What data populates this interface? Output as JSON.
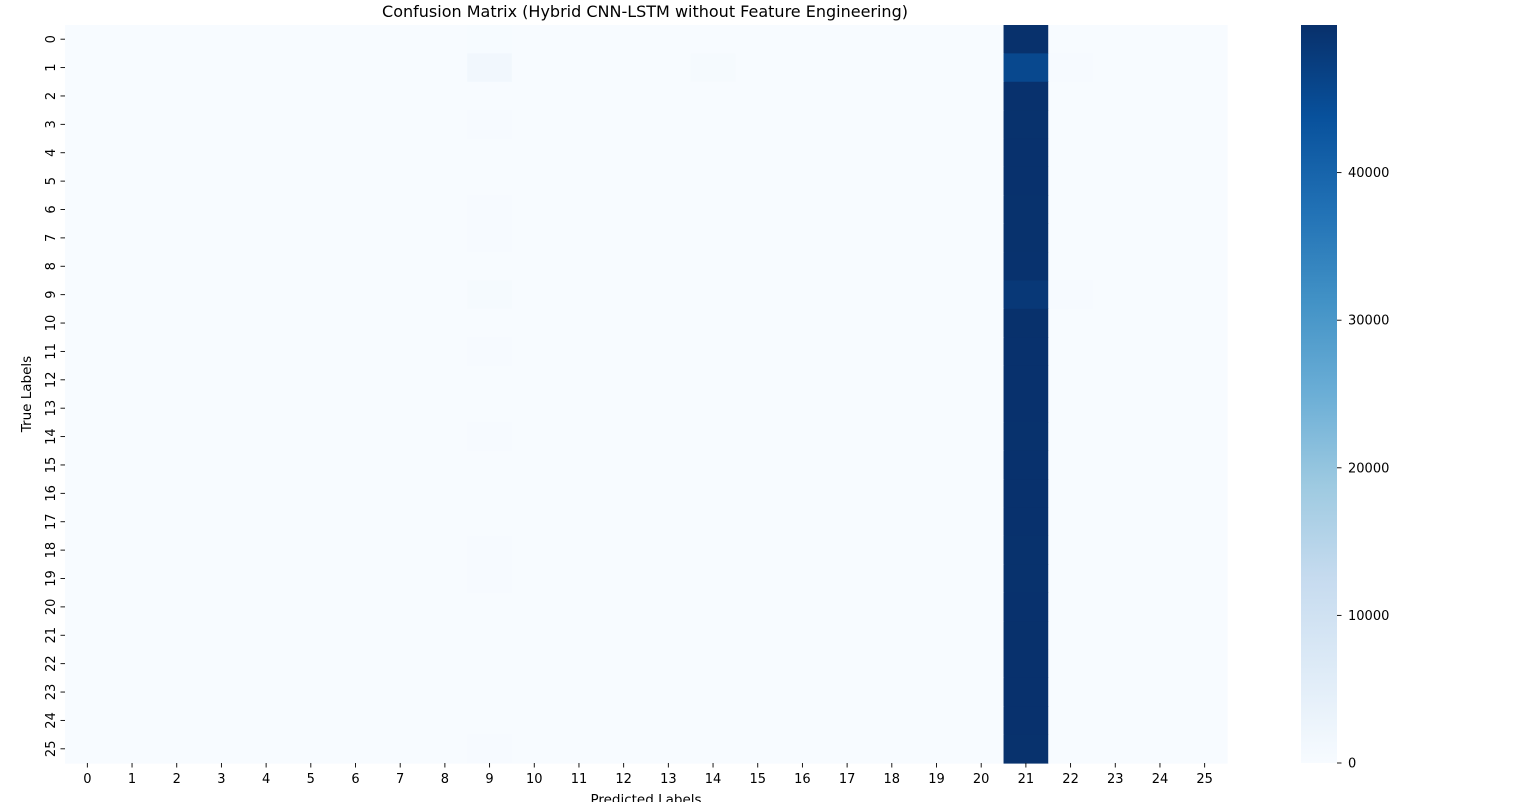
{
  "chart_data": {
    "type": "heatmap",
    "title": "Confusion Matrix (Hybrid CNN-LSTM without Feature Engineering)",
    "xlabel": "Predicted Labels",
    "ylabel": "True Labels",
    "x_categories": [
      "0",
      "1",
      "2",
      "3",
      "4",
      "5",
      "6",
      "7",
      "8",
      "9",
      "10",
      "11",
      "12",
      "13",
      "14",
      "15",
      "16",
      "17",
      "18",
      "19",
      "20",
      "21",
      "22",
      "23",
      "24",
      "25"
    ],
    "y_categories": [
      "0",
      "1",
      "2",
      "3",
      "4",
      "5",
      "6",
      "7",
      "8",
      "9",
      "10",
      "11",
      "12",
      "13",
      "14",
      "15",
      "16",
      "17",
      "18",
      "19",
      "20",
      "21",
      "22",
      "23",
      "24",
      "25"
    ],
    "colormap": "Blues",
    "vmin": 0,
    "vmax": 50000,
    "colorbar_ticks": [
      0,
      10000,
      20000,
      30000,
      40000
    ],
    "colorbar_tick_labels": [
      "0",
      "10000",
      "20000",
      "30000",
      "40000"
    ],
    "grid": false,
    "cells": [
      {
        "row": 0,
        "col": 21,
        "value": 49900
      },
      {
        "row": 0,
        "col": 9,
        "value": 150
      },
      {
        "row": 1,
        "col": 21,
        "value": 45500
      },
      {
        "row": 1,
        "col": 9,
        "value": 1600
      },
      {
        "row": 1,
        "col": 14,
        "value": 500
      },
      {
        "row": 1,
        "col": 22,
        "value": 350
      },
      {
        "row": 2,
        "col": 21,
        "value": 49800
      },
      {
        "row": 3,
        "col": 21,
        "value": 49700
      },
      {
        "row": 3,
        "col": 9,
        "value": 250
      },
      {
        "row": 4,
        "col": 21,
        "value": 49800
      },
      {
        "row": 5,
        "col": 21,
        "value": 49800
      },
      {
        "row": 6,
        "col": 21,
        "value": 49700
      },
      {
        "row": 6,
        "col": 9,
        "value": 250
      },
      {
        "row": 7,
        "col": 21,
        "value": 49700
      },
      {
        "row": 7,
        "col": 9,
        "value": 200
      },
      {
        "row": 8,
        "col": 21,
        "value": 49600
      },
      {
        "row": 9,
        "col": 21,
        "value": 48500
      },
      {
        "row": 9,
        "col": 9,
        "value": 500
      },
      {
        "row": 9,
        "col": 22,
        "value": 250
      },
      {
        "row": 10,
        "col": 21,
        "value": 49900
      },
      {
        "row": 11,
        "col": 21,
        "value": 49800
      },
      {
        "row": 11,
        "col": 9,
        "value": 250
      },
      {
        "row": 12,
        "col": 21,
        "value": 49800
      },
      {
        "row": 13,
        "col": 21,
        "value": 49800
      },
      {
        "row": 14,
        "col": 21,
        "value": 49700
      },
      {
        "row": 14,
        "col": 9,
        "value": 300
      },
      {
        "row": 15,
        "col": 21,
        "value": 49800
      },
      {
        "row": 16,
        "col": 21,
        "value": 49800
      },
      {
        "row": 17,
        "col": 21,
        "value": 49800
      },
      {
        "row": 18,
        "col": 21,
        "value": 49700
      },
      {
        "row": 18,
        "col": 9,
        "value": 250
      },
      {
        "row": 19,
        "col": 21,
        "value": 49700
      },
      {
        "row": 19,
        "col": 9,
        "value": 250
      },
      {
        "row": 20,
        "col": 21,
        "value": 49800
      },
      {
        "row": 21,
        "col": 21,
        "value": 49900
      },
      {
        "row": 22,
        "col": 21,
        "value": 49800
      },
      {
        "row": 23,
        "col": 21,
        "value": 49800
      },
      {
        "row": 24,
        "col": 21,
        "value": 49800
      },
      {
        "row": 25,
        "col": 21,
        "value": 49700
      },
      {
        "row": 25,
        "col": 9,
        "value": 250
      }
    ]
  }
}
